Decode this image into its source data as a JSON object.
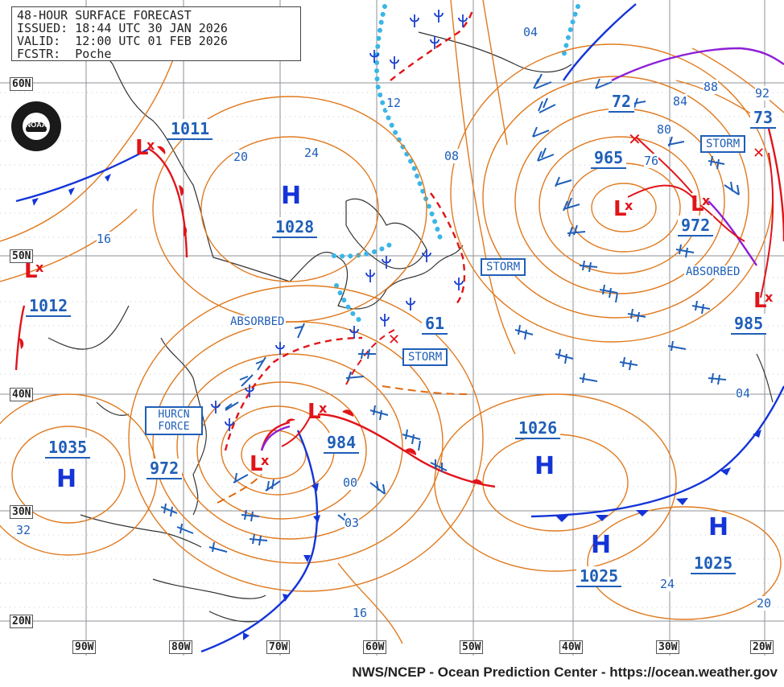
{
  "header": {
    "title": "48-HOUR SURFACE FORECAST",
    "issued": "ISSUED: 18:44 UTC 30 JAN 2026",
    "valid": "VALID:  12:00 UTC 01 FEB 2026",
    "forecaster": "FCSTR:  Poche"
  },
  "logo_text": "NOAA",
  "credit": "NWS/NCEP - Ocean Prediction Center - https://ocean.weather.gov",
  "lat_labels": [
    "60N",
    "50N",
    "40N",
    "30N",
    "20N"
  ],
  "lon_labels": [
    "90W",
    "80W",
    "70W",
    "60W",
    "50W",
    "40W",
    "30W",
    "20W"
  ],
  "pressure_centers": [
    {
      "type": "H",
      "value": "1028"
    },
    {
      "type": "H",
      "value": "1035"
    },
    {
      "type": "H",
      "value": "1026"
    },
    {
      "type": "H",
      "value": "1025"
    },
    {
      "type": "H",
      "value": "1025"
    },
    {
      "type": "L",
      "value": "1011"
    },
    {
      "type": "L",
      "value": "1012"
    },
    {
      "type": "L",
      "value": "972"
    },
    {
      "type": "L",
      "value": "984"
    },
    {
      "type": "L",
      "value": "965"
    },
    {
      "type": "L",
      "value": "972"
    },
    {
      "type": "L",
      "value": "985"
    },
    {
      "type": "L",
      "value": "61"
    },
    {
      "type": "L",
      "value": "73"
    },
    {
      "type": "L",
      "value": "72"
    }
  ],
  "warnings": [
    "HURCN FORCE",
    "STORM",
    "STORM",
    "STORM",
    "ABSORBED",
    "ABSORBED"
  ],
  "isobar_labels": [
    "20",
    "24",
    "16",
    "12",
    "08",
    "04",
    "88",
    "92",
    "84",
    "80",
    "76",
    "00",
    "03",
    "32",
    "04",
    "24",
    "20",
    "16"
  ],
  "colors": {
    "isobar": "#e07a1f",
    "cold_front": "#1434d8",
    "warm_front": "#e0141a",
    "occluded": "#8e1fd6",
    "ice_edge": "#3ab6e6",
    "wind_barb": "#1f5fb8",
    "grid": "#9aa0a6",
    "land": "#333333"
  }
}
